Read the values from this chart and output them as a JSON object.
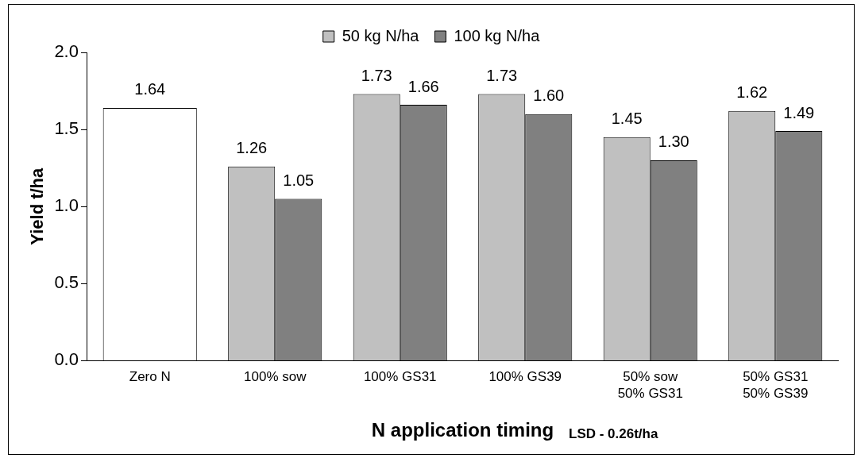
{
  "chart_data": {
    "type": "bar",
    "xlabel": "N application timing",
    "ylabel": "Yield t/ha",
    "categories": [
      "Zero N",
      "100% sow",
      "100% GS31",
      "100% GS39",
      "50% sow\n50% GS31",
      "50% GS31\n50% GS39"
    ],
    "series": [
      {
        "color": "#ffffff",
        "values": [
          1.64,
          null,
          null,
          null,
          null,
          null
        ],
        "value_labels": [
          "1.64",
          null,
          null,
          null,
          null,
          null
        ]
      },
      {
        "name": "50 kg N/ha",
        "color": "#c0c0c0",
        "values": [
          null,
          1.26,
          1.73,
          1.73,
          1.45,
          1.62
        ],
        "value_labels": [
          null,
          "1.26",
          "1.73",
          "1.73",
          "1.45",
          "1.62"
        ]
      },
      {
        "name": "100 kg N/ha",
        "color": "#808080",
        "values": [
          null,
          1.05,
          1.66,
          1.6,
          1.3,
          1.49
        ],
        "value_labels": [
          null,
          "1.05",
          "1.66",
          "1.60",
          "1.30",
          "1.49"
        ]
      }
    ],
    "ylim": [
      0,
      2
    ],
    "yticks": [
      {
        "value": 0,
        "label": "0.0"
      },
      {
        "value": 0.5,
        "label": "0.5"
      },
      {
        "value": 1,
        "label": "1.0"
      },
      {
        "value": 1.5,
        "label": "1.5"
      },
      {
        "value": 2,
        "label": "2.0"
      }
    ],
    "grid": false,
    "legend": "top",
    "annotations": [
      "LSD - 0.26t/ha"
    ]
  }
}
